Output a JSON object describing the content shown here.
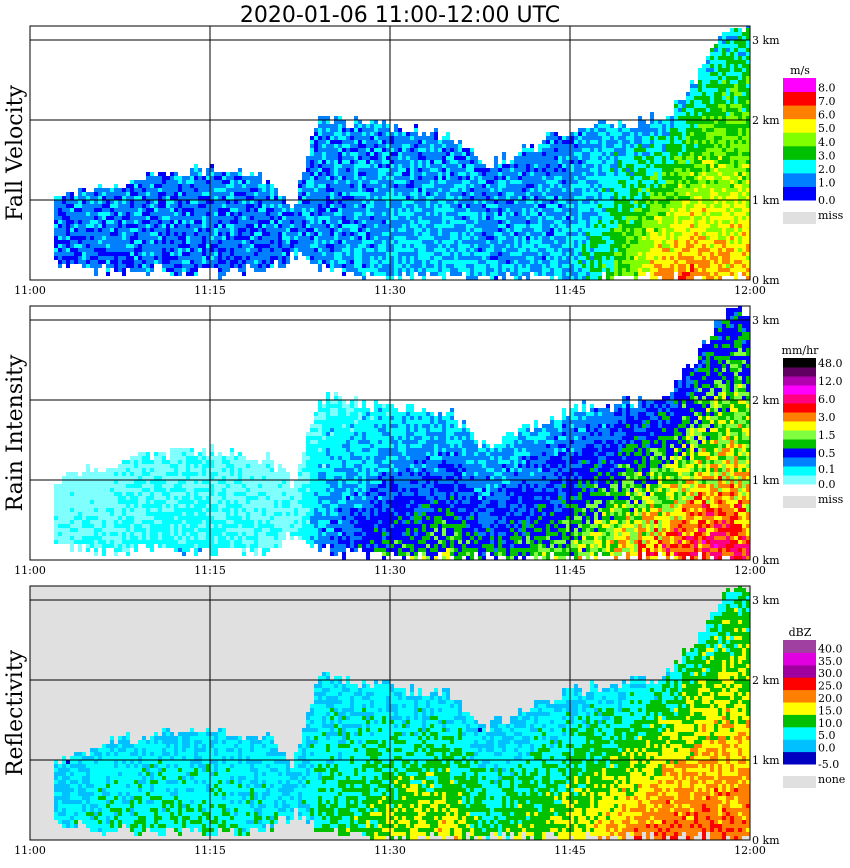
{
  "title": "2020-01-06  11:00-12:00 UTC",
  "chart_data": [
    {
      "type": "heatmap",
      "ylabel": "Fall Velocity",
      "unit": "m/s",
      "scale": "linear",
      "background": "#ffffff",
      "thresholds": [
        0,
        1,
        2,
        3,
        4,
        5,
        6,
        7,
        8
      ],
      "colors": [
        "#0000ff",
        "#0080ff",
        "#00ffff",
        "#00c000",
        "#80ff00",
        "#ffff00",
        "#ff8000",
        "#ff0000",
        "#ff00ff"
      ],
      "legend_labels": [
        "0.0",
        "1.0",
        "2.0",
        "3.0",
        "4.0",
        "5.0",
        "6.0",
        "7.0",
        "8.0"
      ],
      "missing_label": "miss",
      "noise": 0.9,
      "surface_values": [
        1.2,
        1.2,
        1.3,
        1.2,
        1.3,
        1.2,
        1.5,
        2.0,
        2.2,
        1.8,
        2.0,
        4.5,
        6.5,
        6.5,
        6.0,
        6.0
      ],
      "top_values": [
        1.5,
        1.5,
        1.5,
        1.5,
        1.5,
        1.5,
        1.5,
        1.5,
        1.5,
        1.5,
        1.5,
        2.0,
        2.0,
        2.5,
        2.5,
        2.5
      ]
    },
    {
      "type": "heatmap",
      "ylabel": "Rain Intensity",
      "unit": "mm/hr",
      "scale": "log",
      "background": "#ffffff",
      "thresholds": [
        0,
        0.1,
        0.25,
        0.5,
        1.0,
        1.5,
        2.0,
        3.0,
        4.5,
        6.0,
        9.0,
        12.0,
        24.0,
        48.0
      ],
      "colors": [
        "#80ffff",
        "#00ffff",
        "#0080ff",
        "#0000ff",
        "#00c000",
        "#80ff40",
        "#ffff00",
        "#ff8000",
        "#ff0000",
        "#ff0080",
        "#ff00ff",
        "#b000b0",
        "#600060",
        "#000000"
      ],
      "legend_labels": [
        "0.0",
        "0.1",
        "0.5",
        "1.5",
        "3.0",
        "6.0",
        "12.0",
        "48.0"
      ],
      "legend_label_levels": [
        0,
        1,
        3,
        5,
        7,
        9,
        11,
        13
      ],
      "missing_label": "miss",
      "noise": 0.6,
      "surface_values": [
        0.08,
        0.1,
        0.15,
        0.15,
        0.1,
        0.1,
        0.3,
        1.0,
        1.5,
        0.8,
        1.5,
        3.0,
        4.5,
        6.0,
        6.0,
        5.0
      ],
      "top_values": [
        0.05,
        0.05,
        0.08,
        0.08,
        0.06,
        0.06,
        0.1,
        0.15,
        0.2,
        0.2,
        0.25,
        0.4,
        0.5,
        0.6,
        0.6,
        0.6
      ]
    },
    {
      "type": "heatmap",
      "ylabel": "Reflectivity",
      "unit": "dBZ",
      "scale": "linear",
      "background": "#e0e0e0",
      "thresholds": [
        -5,
        0,
        5,
        10,
        15,
        20,
        25,
        30,
        35,
        40
      ],
      "colors": [
        "#0000c0",
        "#00c0ff",
        "#00ffff",
        "#00c000",
        "#ffff00",
        "#ff8000",
        "#ff0000",
        "#a000a0",
        "#e000e0",
        "#a040a0"
      ],
      "legend_labels": [
        "-5.0",
        "0.0",
        "5.0",
        "10.0",
        "15.0",
        "20.0",
        "25.0",
        "30.0",
        "35.0",
        "40.0"
      ],
      "missing_label": "none",
      "noise": 4,
      "surface_values": [
        5,
        8,
        10,
        10,
        8,
        5,
        10,
        15,
        18,
        12,
        16,
        22,
        25,
        25,
        24,
        24
      ],
      "top_values": [
        3,
        5,
        5,
        5,
        5,
        5,
        5,
        5,
        5,
        3,
        5,
        5,
        8,
        10,
        10,
        10
      ]
    }
  ],
  "shared": {
    "time_minutes_after_1100": [
      2,
      5,
      10,
      15,
      20,
      22,
      24,
      30,
      35,
      38,
      45,
      50,
      53,
      56,
      58,
      60
    ],
    "echo_top_km": [
      1.0,
      1.1,
      1.3,
      1.35,
      1.25,
      0.9,
      2.0,
      1.9,
      1.8,
      1.4,
      1.85,
      1.95,
      2.0,
      2.6,
      3.1,
      3.1
    ],
    "echo_base_km": [
      0.2,
      0.1,
      0.1,
      0.05,
      0.1,
      0.3,
      0.1,
      0,
      0,
      0,
      0,
      0,
      0,
      0,
      0,
      0
    ],
    "x_ticks": [
      "11:00",
      "11:15",
      "11:30",
      "11:45",
      "12:00"
    ],
    "y_ticks": [
      "0 km",
      "1 km",
      "2 km",
      "3 km"
    ],
    "xlim_minutes": [
      0,
      60
    ],
    "ylim_km": [
      0,
      3.2
    ]
  }
}
